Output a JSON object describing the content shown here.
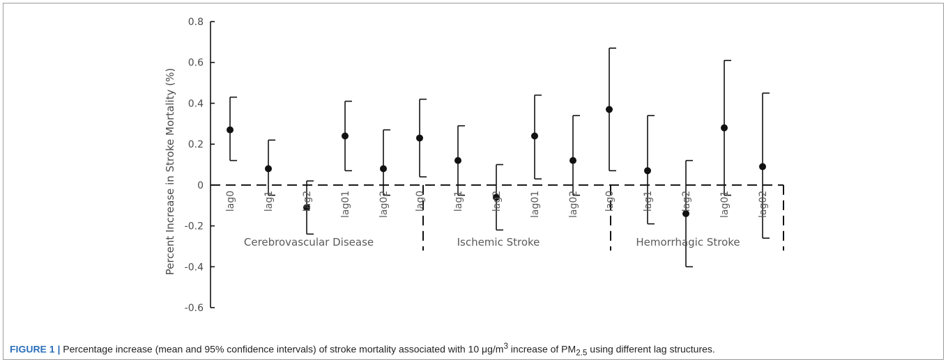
{
  "chart_data": {
    "type": "scatter",
    "ylabel": "Percent Increase in Stroke Mortality (%)",
    "ylim": [
      -0.6,
      0.8
    ],
    "yticks": [
      "0.8",
      "0.6",
      "0.4",
      "0.2",
      "0",
      "-0.2",
      "-0.4",
      "-0.6"
    ],
    "ytick_values": [
      0.8,
      0.6,
      0.4,
      0.2,
      0,
      -0.2,
      -0.4,
      -0.6
    ],
    "groups": [
      {
        "name": "Cerebrovascular Disease",
        "points": [
          {
            "label": "lag0",
            "mean": 0.27,
            "lower": 0.12,
            "upper": 0.43
          },
          {
            "label": "lag1",
            "mean": 0.08,
            "lower": -0.05,
            "upper": 0.22
          },
          {
            "label": "lag2",
            "mean": -0.11,
            "lower": -0.24,
            "upper": 0.02
          },
          {
            "label": "lag01",
            "mean": 0.24,
            "lower": 0.07,
            "upper": 0.41
          },
          {
            "label": "lag02",
            "mean": 0.08,
            "lower": -0.05,
            "upper": 0.27
          }
        ]
      },
      {
        "name": "Ischemic Stroke",
        "points": [
          {
            "label": "lag0",
            "mean": 0.23,
            "lower": 0.04,
            "upper": 0.42
          },
          {
            "label": "lag1",
            "mean": 0.12,
            "lower": -0.05,
            "upper": 0.29
          },
          {
            "label": "lag2",
            "mean": -0.06,
            "lower": -0.22,
            "upper": 0.1
          },
          {
            "label": "lag01",
            "mean": 0.24,
            "lower": 0.03,
            "upper": 0.44
          },
          {
            "label": "lag02",
            "mean": 0.12,
            "lower": -0.05,
            "upper": 0.34
          }
        ]
      },
      {
        "name": "Hemorrhagic Stroke",
        "points": [
          {
            "label": "lag0",
            "mean": 0.37,
            "lower": 0.07,
            "upper": 0.67
          },
          {
            "label": "lag1",
            "mean": 0.07,
            "lower": -0.19,
            "upper": 0.34
          },
          {
            "label": "lag2",
            "mean": -0.14,
            "lower": -0.4,
            "upper": 0.12
          },
          {
            "label": "lag01",
            "mean": 0.28,
            "lower": -0.05,
            "upper": 0.61
          },
          {
            "label": "lag02",
            "mean": 0.09,
            "lower": -0.26,
            "upper": 0.45
          }
        ]
      }
    ],
    "reference_line": 0,
    "grid": false
  },
  "caption": {
    "label": "FIGURE 1 |",
    "text_before": " Percentage increase (mean and 95% confidence intervals) of stroke mortality associated with 10 μg/m",
    "sup": "3",
    "text_middle": " increase of PM",
    "sub": "2.5",
    "text_after": " using different lag structures."
  }
}
